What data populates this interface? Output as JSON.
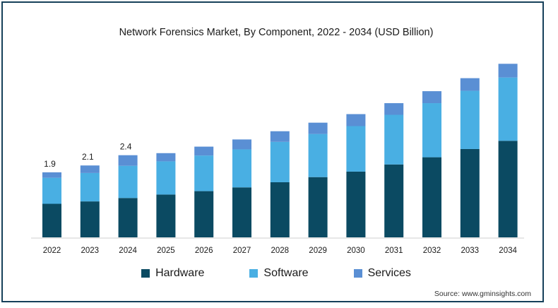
{
  "source": "Source: www.gminsights.com",
  "chart_data": {
    "type": "bar",
    "stacked": true,
    "title": "Network Forensics Market, By Component, 2022 - 2034 (USD Billion)",
    "xlabel": "",
    "ylabel": "",
    "legend_position": "bottom",
    "grid": false,
    "categories": [
      "2022",
      "2023",
      "2024",
      "2025",
      "2026",
      "2027",
      "2028",
      "2029",
      "2030",
      "2031",
      "2032",
      "2033",
      "2034"
    ],
    "series": [
      {
        "name": "Hardware",
        "color": "#0b4a62",
        "values": [
          0.98,
          1.05,
          1.15,
          1.25,
          1.35,
          1.46,
          1.61,
          1.76,
          1.92,
          2.13,
          2.34,
          2.58,
          2.82
        ]
      },
      {
        "name": "Software",
        "color": "#49afe3",
        "values": [
          0.76,
          0.83,
          0.94,
          0.97,
          1.04,
          1.11,
          1.18,
          1.26,
          1.33,
          1.45,
          1.58,
          1.7,
          1.85
        ]
      },
      {
        "name": "Services",
        "color": "#5a8fd4",
        "values": [
          0.16,
          0.22,
          0.31,
          0.24,
          0.26,
          0.29,
          0.31,
          0.33,
          0.35,
          0.34,
          0.35,
          0.37,
          0.4
        ]
      }
    ],
    "data_labels": {
      "2022": "1.9",
      "2023": "2.1",
      "2024": "2.4"
    },
    "ylim": [
      0,
      5.2
    ]
  }
}
